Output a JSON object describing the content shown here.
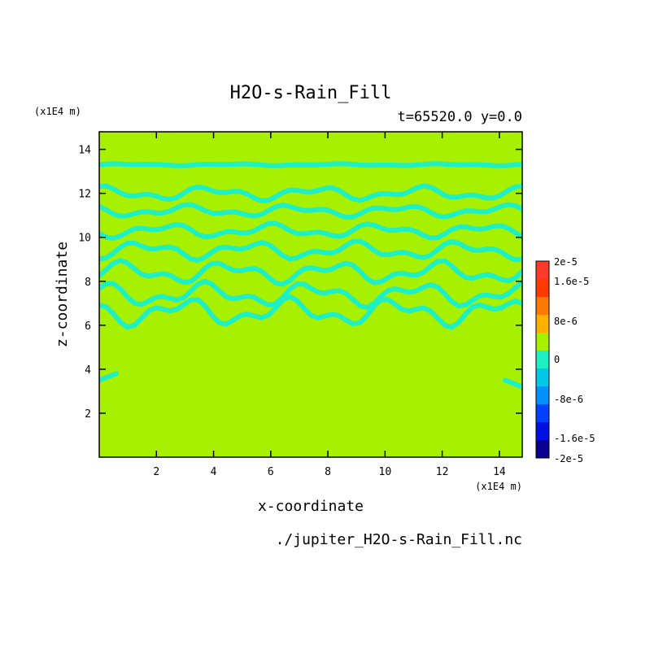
{
  "chart_data": {
    "type": "heatmap",
    "title": "H2O-s-Rain_Fill",
    "subtitle": "t=65520.0 y=0.0",
    "xlabel": "x-coordinate",
    "ylabel": "z-coordinate",
    "x_unit": "(x1E4 m)",
    "y_unit": "(x1E4 m)",
    "source_file": "./jupiter_H2O-s-Rain_Fill.nc",
    "xlim": [
      0.0,
      14.8
    ],
    "ylim": [
      0.0,
      14.8
    ],
    "x_ticks": [
      2,
      4,
      6,
      8,
      10,
      12,
      14
    ],
    "y_ticks": [
      2,
      4,
      6,
      8,
      10,
      12,
      14
    ],
    "background_level": 0,
    "background_color": "#a6f000",
    "contour_color": "#1ef0c4",
    "contour_level": -4e-06,
    "contour_bands": [
      {
        "z": 13.3,
        "amplitude": 0.05
      },
      {
        "z": 12.0,
        "amplitude": 0.35
      },
      {
        "z": 11.2,
        "amplitude": 0.3
      },
      {
        "z": 10.3,
        "amplitude": 0.35
      },
      {
        "z": 9.4,
        "amplitude": 0.45
      },
      {
        "z": 8.4,
        "amplitude": 0.55
      },
      {
        "z": 7.4,
        "amplitude": 0.6
      },
      {
        "z": 6.6,
        "amplitude": 0.7
      }
    ],
    "edge_patch_z": 3.5,
    "colorbar": {
      "levels": [
        "2e-5",
        "1.6e-5",
        "8e-6",
        "0",
        "-8e-6",
        "-1.6e-5",
        "-2e-5"
      ],
      "colors": [
        "#ff3a2a",
        "#ff3a00",
        "#ff7a00",
        "#ffb000",
        "#a6f000",
        "#1ef0c4",
        "#00c8e6",
        "#0090ff",
        "#0040ff",
        "#0010e0",
        "#0a0090"
      ]
    }
  }
}
